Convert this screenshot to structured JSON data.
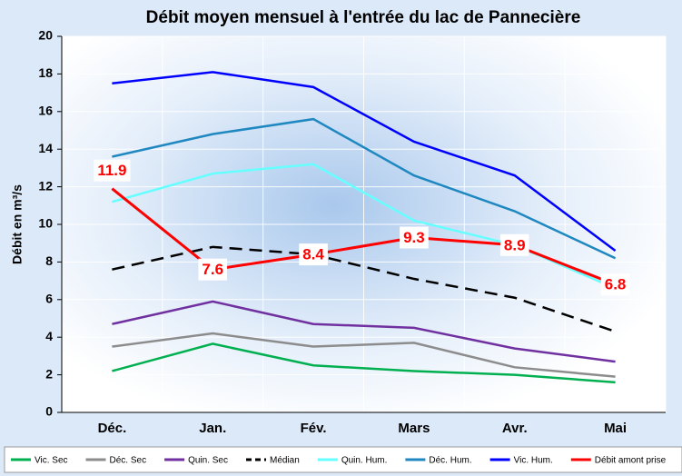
{
  "chart_data": {
    "type": "line",
    "title": "Débit moyen mensuel à l'entrée du lac de Pannecière",
    "ylabel": "Débit en m³/s",
    "categories": [
      "Déc.",
      "Jan.",
      "Fév.",
      "Mars",
      "Avr.",
      "Mai"
    ],
    "ylim": [
      0,
      20
    ],
    "yticks": [
      0,
      2,
      4,
      6,
      8,
      10,
      12,
      14,
      16,
      18,
      20
    ],
    "grid": true,
    "legend": "bottom",
    "series": [
      {
        "name": "Vic. Sec",
        "color": "#00b050",
        "values": [
          2.2,
          3.65,
          2.5,
          2.2,
          2.0,
          1.6
        ]
      },
      {
        "name": "Déc. Sec",
        "color": "#8c8c8c",
        "values": [
          3.5,
          4.2,
          3.5,
          3.7,
          2.4,
          1.9
        ]
      },
      {
        "name": "Quin. Sec",
        "color": "#7030a0",
        "values": [
          4.7,
          5.9,
          4.7,
          4.5,
          3.4,
          2.7
        ]
      },
      {
        "name": "Médian",
        "color": "#000000",
        "dashed": true,
        "values": [
          7.6,
          8.8,
          8.4,
          7.1,
          6.1,
          4.3
        ]
      },
      {
        "name": "Quin. Hum.",
        "color": "#66ffff",
        "values": [
          11.2,
          12.7,
          13.2,
          10.2,
          8.9,
          6.6
        ]
      },
      {
        "name": "Déc. Hum.",
        "color": "#1f88c0",
        "values": [
          13.6,
          14.8,
          15.6,
          12.6,
          10.7,
          8.2
        ]
      },
      {
        "name": "Vic. Hum.",
        "color": "#0000ff",
        "values": [
          17.5,
          18.1,
          17.3,
          14.4,
          12.6,
          8.6
        ]
      },
      {
        "name": "Débit amont prise",
        "color": "#ff0000",
        "data_labels": true,
        "values": [
          11.9,
          7.6,
          8.4,
          9.3,
          8.9,
          6.8
        ]
      }
    ]
  }
}
